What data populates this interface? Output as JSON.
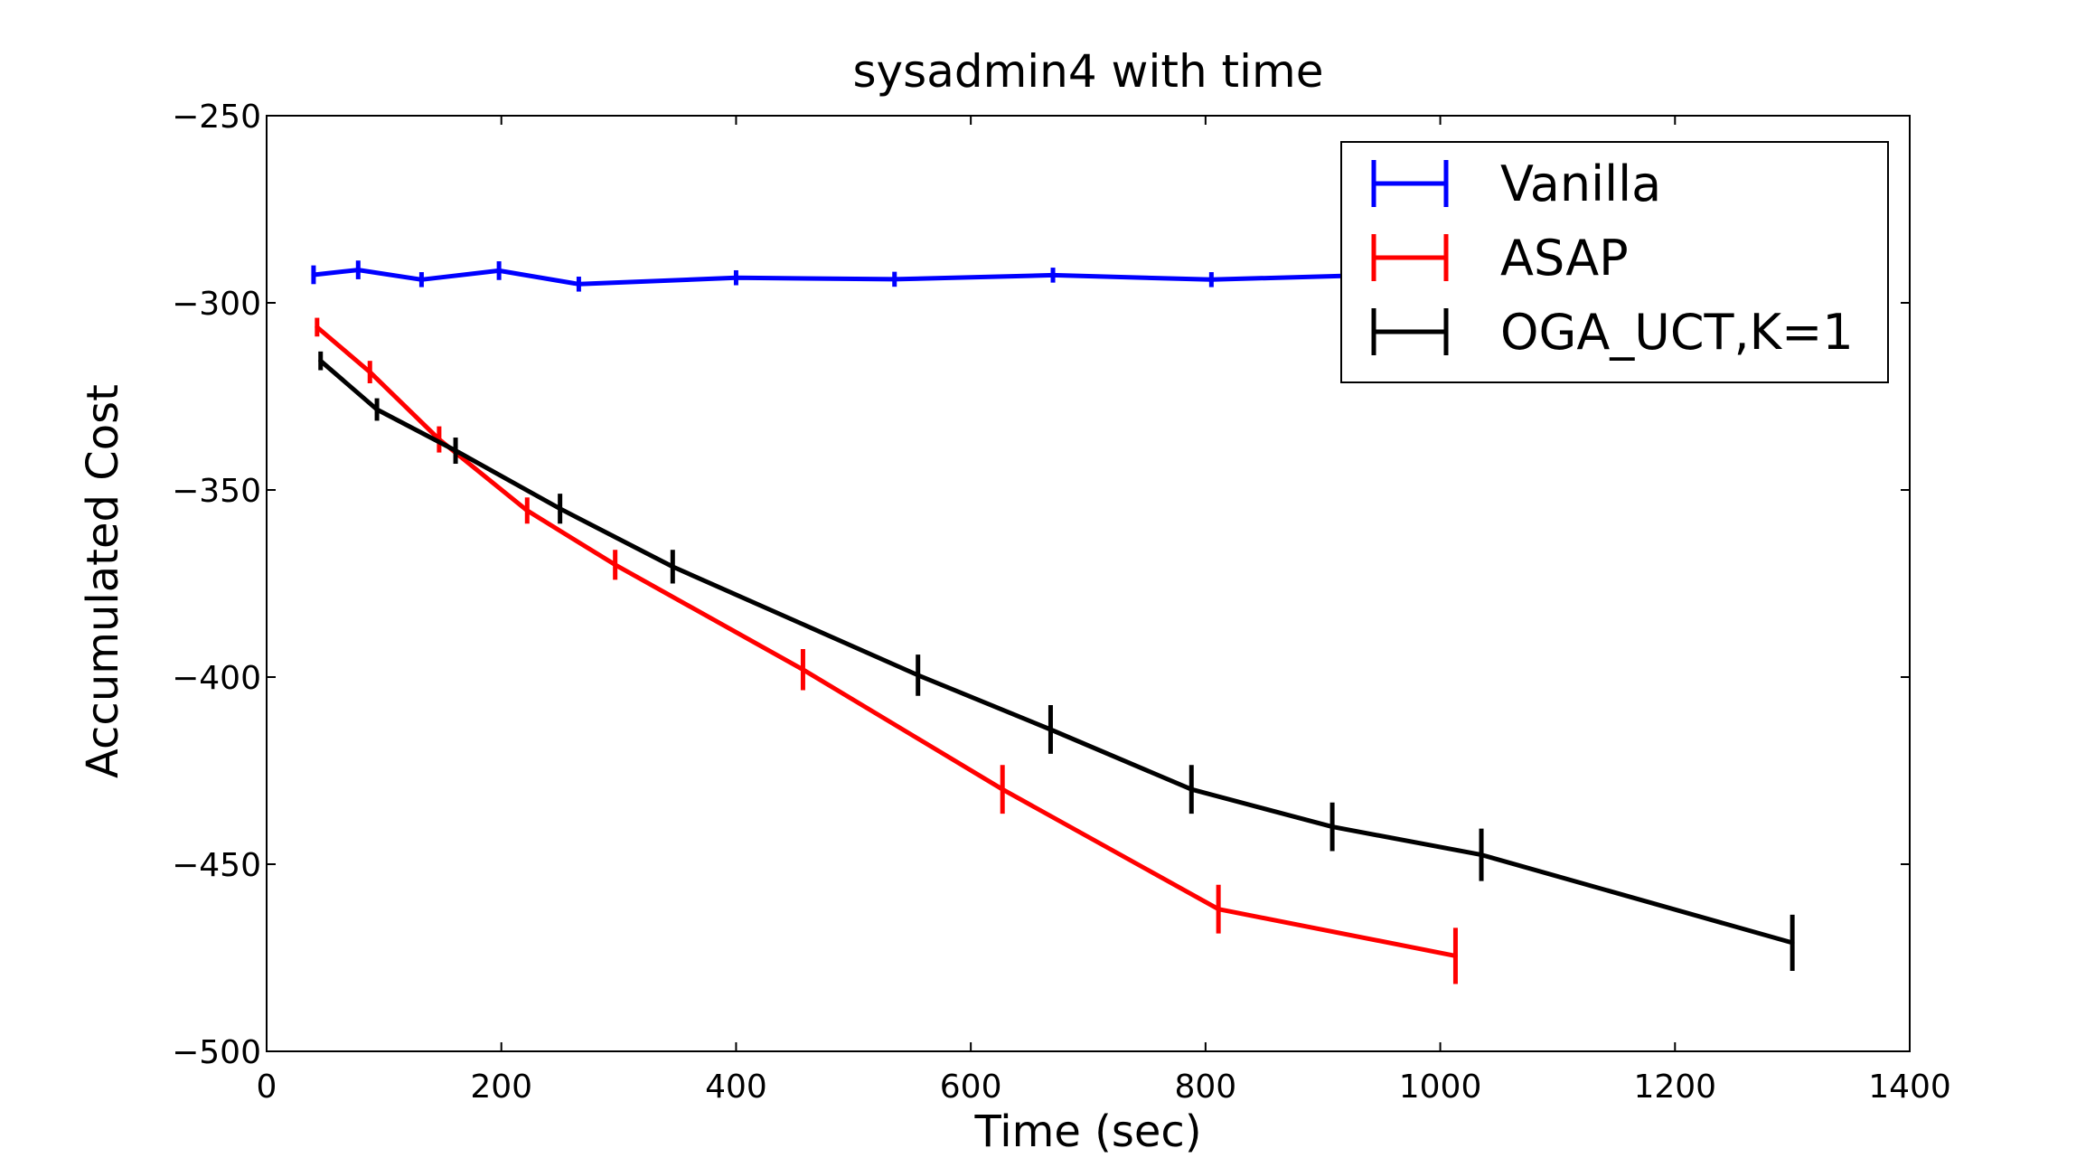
{
  "chart_data": {
    "type": "line",
    "title": "sysadmin4 with time",
    "xlabel": "Time (sec)",
    "ylabel": "Accumulated Cost",
    "xlim": [
      0,
      1400
    ],
    "ylim": [
      -500,
      -250
    ],
    "xticks": [
      0,
      200,
      400,
      600,
      800,
      1000,
      1200,
      1400
    ],
    "yticks": [
      -250,
      -300,
      -350,
      -400,
      -450,
      -500
    ],
    "xtick_labels": [
      "0",
      "200",
      "400",
      "600",
      "800",
      "1000",
      "1200",
      "1400"
    ],
    "ytick_labels": [
      "−250",
      "−300",
      "−350",
      "−400",
      "−450",
      "−500"
    ],
    "legend_position": "upper right",
    "grid": false,
    "series": [
      {
        "name": "Vanilla",
        "color": "#0000ff",
        "x": [
          40,
          78,
          132,
          198,
          266,
          400,
          535,
          670,
          805,
          975
        ],
        "y": [
          -292.5,
          -291.2,
          -293.8,
          -291.4,
          -295.0,
          -293.3,
          -293.7,
          -292.6,
          -293.8,
          -292.3
        ],
        "err": [
          2.5,
          2.5,
          2.0,
          2.5,
          2.0,
          2.0,
          2.0,
          2.0,
          2.0,
          2.0
        ]
      },
      {
        "name": "ASAP",
        "color": "#ff0000",
        "x": [
          43,
          88,
          147,
          222,
          297,
          457,
          627,
          811,
          1013
        ],
        "y": [
          -306.5,
          -318.5,
          -336.5,
          -355.5,
          -370.0,
          -398.0,
          -430.0,
          -462.0,
          -474.5
        ],
        "err": [
          2.5,
          3.0,
          3.5,
          3.5,
          4.0,
          5.5,
          6.5,
          6.5,
          7.5
        ]
      },
      {
        "name": "OGA_UCT,K=1",
        "color": "#000000",
        "x": [
          46,
          94,
          161,
          250,
          346,
          555,
          668,
          788,
          908,
          1035,
          1300
        ],
        "y": [
          -315.5,
          -328.5,
          -339.5,
          -355.0,
          -370.5,
          -399.5,
          -414.0,
          -430.0,
          -440.0,
          -447.5,
          -471.0
        ],
        "err": [
          2.5,
          3.0,
          3.5,
          4.0,
          4.5,
          5.5,
          6.5,
          6.5,
          6.5,
          7.0,
          7.5
        ]
      }
    ]
  }
}
